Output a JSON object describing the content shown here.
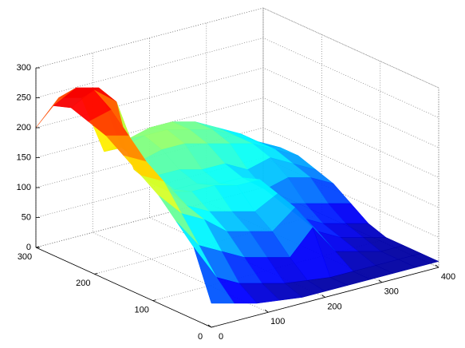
{
  "chart_data": {
    "type": "surface",
    "colormap": "jet",
    "grid": true,
    "x": [
      0,
      40,
      80,
      120,
      160,
      200,
      240,
      280,
      320,
      360,
      400
    ],
    "y": [
      0,
      30,
      60,
      90,
      120,
      150,
      180,
      210,
      240,
      270,
      300
    ],
    "z": [
      [
        40,
        30,
        20,
        15,
        10,
        10,
        10,
        10,
        10,
        10,
        10
      ],
      [
        120,
        60,
        40,
        30,
        20,
        15,
        10,
        10,
        10,
        10,
        10
      ],
      [
        150,
        100,
        80,
        60,
        50,
        40,
        80,
        30,
        20,
        10,
        10
      ],
      [
        180,
        140,
        120,
        90,
        80,
        70,
        100,
        50,
        30,
        20,
        10
      ],
      [
        200,
        180,
        130,
        110,
        100,
        90,
        110,
        60,
        40,
        30,
        20
      ],
      [
        220,
        200,
        140,
        130,
        130,
        120,
        120,
        70,
        60,
        50,
        40
      ],
      [
        240,
        230,
        140,
        120,
        120,
        110,
        110,
        80,
        90,
        80,
        60
      ],
      [
        250,
        260,
        150,
        130,
        130,
        120,
        120,
        100,
        110,
        90,
        70
      ],
      [
        260,
        280,
        250,
        140,
        150,
        150,
        140,
        130,
        120,
        100,
        80
      ],
      [
        250,
        270,
        260,
        150,
        160,
        160,
        150,
        140,
        120,
        100,
        80
      ],
      [
        200,
        240,
        230,
        130,
        140,
        150,
        150,
        140,
        120,
        100,
        70
      ]
    ],
    "xlim": [
      0,
      400
    ],
    "ylim": [
      0,
      300
    ],
    "zlim": [
      0,
      300
    ],
    "xticks": [
      0,
      100,
      200,
      300,
      400
    ],
    "yticks": [
      0,
      100,
      200,
      300
    ],
    "zticks": [
      0,
      50,
      100,
      150,
      200,
      250,
      300
    ]
  }
}
